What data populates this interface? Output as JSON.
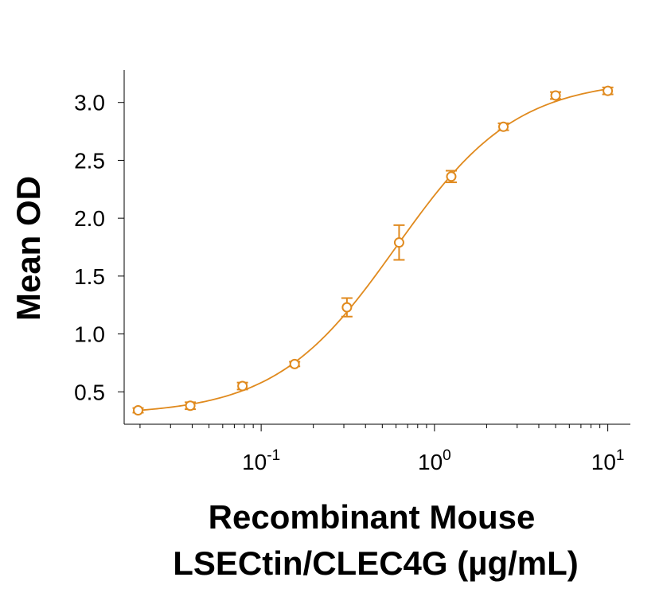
{
  "chart_data": {
    "type": "scatter",
    "series": [
      {
        "name": "Mean OD",
        "x": [
          0.0195,
          0.039,
          0.078,
          0.156,
          0.3125,
          0.625,
          1.25,
          2.5,
          5,
          10
        ],
        "y": [
          0.34,
          0.38,
          0.55,
          0.74,
          1.23,
          1.79,
          2.36,
          2.79,
          3.06,
          3.1
        ],
        "err": [
          0.02,
          0.03,
          0.03,
          0.02,
          0.08,
          0.15,
          0.05,
          0.03,
          0.03,
          0.03
        ]
      }
    ],
    "fit": {
      "type": "4PL",
      "bottom": 0.3,
      "top": 3.2,
      "ec50": 0.6,
      "hill": 1.25
    },
    "xscale": "log",
    "xlim": [
      0.0162,
      13.5
    ],
    "ylim": [
      0.22,
      3.28
    ],
    "yticks": [
      0.5,
      1.0,
      1.5,
      2.0,
      2.5,
      3.0
    ],
    "ytick_labels": [
      "0.5",
      "1.0",
      "1.5",
      "2.0",
      "2.5",
      "3.0"
    ],
    "xticks": [
      {
        "value": 0.1,
        "base": "10",
        "exp": "-1"
      },
      {
        "value": 1,
        "base": "10",
        "exp": "0"
      },
      {
        "value": 10,
        "base": "10",
        "exp": "1"
      }
    ],
    "ylabel": "Mean OD",
    "xlabel_line1": "Recombinant Mouse",
    "xlabel_line2": "LSECtin/CLEC4G (µg/mL)",
    "color": "#E08A1E"
  }
}
